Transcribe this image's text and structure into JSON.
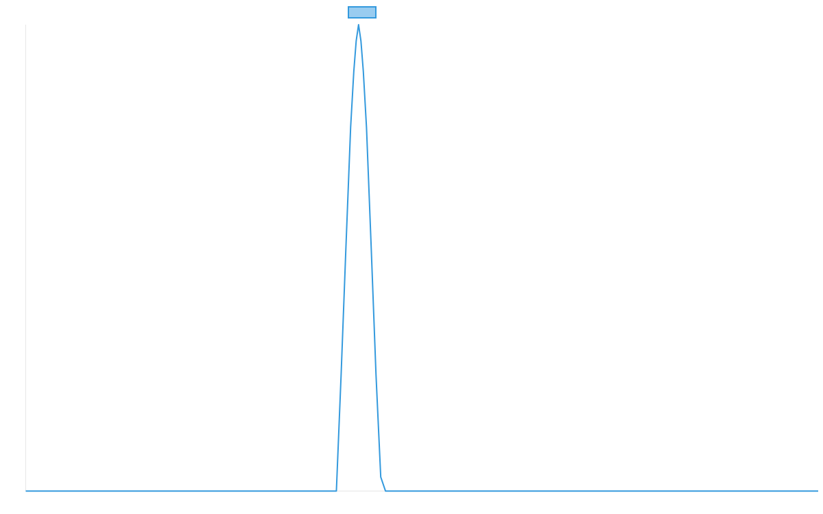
{
  "chart_data": {
    "type": "line",
    "title": "",
    "xlabel": "",
    "ylabel": "",
    "grid": false,
    "legend": {
      "position": "top-center",
      "entries": [
        {
          "label": "",
          "swatch": "rect"
        }
      ]
    },
    "x_range": [
      0,
      100
    ],
    "y_range": [
      0,
      1
    ],
    "series": [
      {
        "color": "#3399dd",
        "fill": "#99ccf0",
        "x": [
          0,
          39.2,
          39.8,
          40.4,
          41.0,
          41.4,
          41.7,
          42.0,
          42.3,
          42.6,
          43.0,
          43.6,
          44.2,
          44.8,
          45.4,
          100
        ],
        "y": [
          0,
          0,
          0.25,
          0.52,
          0.78,
          0.9,
          0.965,
          1.0,
          0.965,
          0.9,
          0.78,
          0.52,
          0.25,
          0.03,
          0,
          0
        ]
      }
    ]
  }
}
